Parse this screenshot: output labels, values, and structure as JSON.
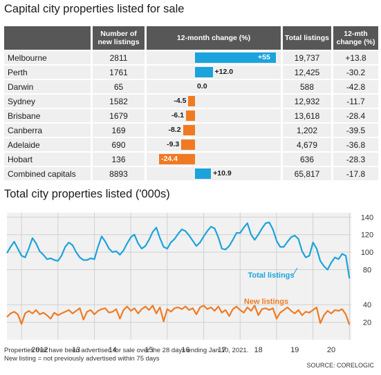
{
  "title": "Capital city properties listed for sale",
  "table": {
    "headers": {
      "city": "",
      "new": "Number of new listings",
      "change": "12-month change (%)",
      "total": "Total listings",
      "mth": "12-mth change (%)"
    },
    "rows": [
      {
        "city": "Melbourne",
        "new": "2811",
        "change_label": "+55",
        "change": 55,
        "total": "19,737",
        "mth": "+13.8"
      },
      {
        "city": "Perth",
        "new": "1761",
        "change_label": "+12.0",
        "change": 12.0,
        "total": "12,425",
        "mth": "-30.2"
      },
      {
        "city": "Darwin",
        "new": "65",
        "change_label": "0.0",
        "change": 0.0,
        "total": "588",
        "mth": "-42.8"
      },
      {
        "city": "Sydney",
        "new": "1582",
        "change_label": "-4.5",
        "change": -4.5,
        "total": "12,932",
        "mth": "-11.7"
      },
      {
        "city": "Brisbane",
        "new": "1679",
        "change_label": "-6.1",
        "change": -6.1,
        "total": "13,618",
        "mth": "-28.4"
      },
      {
        "city": "Canberra",
        "new": "169",
        "change_label": "-8.2",
        "change": -8.2,
        "total": "1,202",
        "mth": "-39.5"
      },
      {
        "city": "Adelaide",
        "new": "690",
        "change_label": "-9.3",
        "change": -9.3,
        "total": "4,679",
        "mth": "-36.8"
      },
      {
        "city": "Hobart",
        "new": "136",
        "change_label": "-24.4",
        "change": -24.4,
        "total": "636",
        "mth": "-28.3"
      },
      {
        "city": "Combined capitals",
        "new": "8893",
        "change_label": "+10.9",
        "change": 10.9,
        "total": "65,817",
        "mth": "-17.8"
      }
    ]
  },
  "colors": {
    "positive": "#1aa3dc",
    "negative": "#f07a22",
    "header": "#575757",
    "cell": "#efefef",
    "grid": "#d0d0d0"
  },
  "chart_title": "Total city properties listed ('000s)",
  "chart_data": {
    "type": "line",
    "title": "Total city properties listed ('000s)",
    "x_tick_labels": [
      "2012",
      "13",
      "14",
      "15",
      "16",
      "17",
      "18",
      "19",
      "20"
    ],
    "x_range": [
      2011.6,
      2021.05
    ],
    "ylim": [
      0,
      145
    ],
    "y_ticks": [
      20,
      40,
      80,
      100,
      120,
      140
    ],
    "series": [
      {
        "name": "Total listings",
        "color": "#1aa3dc",
        "x": [
          2011.6,
          2011.7,
          2011.8,
          2011.9,
          2012.0,
          2012.1,
          2012.2,
          2012.3,
          2012.4,
          2012.5,
          2012.6,
          2012.7,
          2012.8,
          2012.9,
          2013.0,
          2013.1,
          2013.2,
          2013.3,
          2013.4,
          2013.5,
          2013.6,
          2013.7,
          2013.8,
          2013.9,
          2014.0,
          2014.1,
          2014.2,
          2014.3,
          2014.4,
          2014.5,
          2014.6,
          2014.7,
          2014.8,
          2014.9,
          2015.0,
          2015.1,
          2015.2,
          2015.3,
          2015.4,
          2015.5,
          2015.6,
          2015.7,
          2015.8,
          2015.9,
          2016.0,
          2016.1,
          2016.2,
          2016.3,
          2016.4,
          2016.5,
          2016.6,
          2016.7,
          2016.8,
          2016.9,
          2017.0,
          2017.1,
          2017.2,
          2017.3,
          2017.4,
          2017.5,
          2017.6,
          2017.7,
          2017.8,
          2017.9,
          2018.0,
          2018.1,
          2018.2,
          2018.3,
          2018.4,
          2018.5,
          2018.6,
          2018.7,
          2018.8,
          2018.9,
          2019.0,
          2019.1,
          2019.2,
          2019.3,
          2019.4,
          2019.5,
          2019.6,
          2019.7,
          2019.8,
          2019.9,
          2020.0,
          2020.1,
          2020.2,
          2020.3,
          2020.4,
          2020.5,
          2020.6,
          2020.7,
          2020.8,
          2020.9,
          2021.0
        ],
        "values": [
          99,
          106,
          112,
          104,
          96,
          94,
          104,
          116,
          110,
          101,
          97,
          92,
          93,
          91,
          90,
          96,
          106,
          111,
          108,
          100,
          94,
          91,
          91,
          93,
          92,
          106,
          118,
          112,
          104,
          100,
          101,
          97,
          102,
          110,
          117,
          120,
          110,
          104,
          107,
          114,
          123,
          128,
          116,
          106,
          104,
          111,
          115,
          121,
          126,
          124,
          119,
          113,
          107,
          111,
          118,
          124,
          129,
          127,
          117,
          104,
          103,
          107,
          114,
          122,
          122,
          128,
          133,
          120,
          114,
          120,
          127,
          133,
          134,
          126,
          113,
          106,
          106,
          112,
          117,
          119,
          115,
          101,
          94,
          96,
          111,
          104,
          90,
          84,
          80,
          88,
          94,
          92,
          98,
          96,
          70
        ]
      },
      {
        "name": "New listings",
        "color": "#f07a22",
        "x": [
          2011.6,
          2011.7,
          2011.8,
          2011.9,
          2012.0,
          2012.1,
          2012.2,
          2012.3,
          2012.4,
          2012.5,
          2012.6,
          2012.7,
          2012.8,
          2012.9,
          2013.0,
          2013.1,
          2013.2,
          2013.3,
          2013.4,
          2013.5,
          2013.6,
          2013.7,
          2013.8,
          2013.9,
          2014.0,
          2014.1,
          2014.2,
          2014.3,
          2014.4,
          2014.5,
          2014.6,
          2014.7,
          2014.8,
          2014.9,
          2015.0,
          2015.1,
          2015.2,
          2015.3,
          2015.4,
          2015.5,
          2015.6,
          2015.7,
          2015.8,
          2015.9,
          2016.0,
          2016.1,
          2016.2,
          2016.3,
          2016.4,
          2016.5,
          2016.6,
          2016.7,
          2016.8,
          2016.9,
          2017.0,
          2017.1,
          2017.2,
          2017.3,
          2017.4,
          2017.5,
          2017.6,
          2017.7,
          2017.8,
          2017.9,
          2018.0,
          2018.1,
          2018.2,
          2018.3,
          2018.4,
          2018.5,
          2018.6,
          2018.7,
          2018.8,
          2018.9,
          2019.0,
          2019.1,
          2019.2,
          2019.3,
          2019.4,
          2019.5,
          2019.6,
          2019.7,
          2019.8,
          2019.9,
          2020.0,
          2020.1,
          2020.2,
          2020.3,
          2020.4,
          2020.5,
          2020.6,
          2020.7,
          2020.8,
          2020.9,
          2021.0
        ],
        "values": [
          26,
          30,
          32,
          29,
          18,
          30,
          33,
          30,
          34,
          29,
          31,
          28,
          24,
          31,
          28,
          30,
          32,
          34,
          30,
          33,
          36,
          23,
          32,
          34,
          29,
          33,
          35,
          36,
          31,
          32,
          35,
          24,
          34,
          38,
          33,
          36,
          30,
          35,
          38,
          34,
          39,
          30,
          37,
          21,
          35,
          32,
          36,
          37,
          35,
          38,
          34,
          36,
          29,
          37,
          39,
          35,
          37,
          33,
          38,
          31,
          34,
          27,
          35,
          38,
          34,
          31,
          37,
          33,
          39,
          28,
          35,
          36,
          34,
          36,
          24,
          31,
          34,
          37,
          33,
          30,
          34,
          28,
          32,
          31,
          34,
          37,
          19,
          28,
          33,
          30,
          34,
          33,
          35,
          29,
          17
        ]
      }
    ],
    "annotations": [
      {
        "text": "Total listings",
        "series": "Total listings"
      },
      {
        "text": "New listings",
        "series": "New listings"
      }
    ]
  },
  "notes": {
    "line1": "Properties that have been advertised for sale over the 28 days ending Jan 10, 2021.",
    "line2": "New listing = not previously advertised within 75 days",
    "source": "SOURCE: CORELOGIC"
  }
}
